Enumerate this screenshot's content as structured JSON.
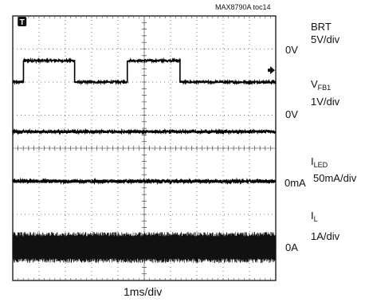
{
  "figure_id": "MAX8790A toc14",
  "time_base": "1ms/div",
  "chart_data": {
    "type": "line",
    "divisions": {
      "horizontal": 10,
      "vertical": 8
    },
    "x_axis": {
      "label": "1ms/div",
      "units": "ms",
      "range": [
        0,
        10
      ]
    },
    "trigger_marker": "T",
    "channels": [
      {
        "id": "brt",
        "name": "BRT",
        "scale": "5V/div",
        "ground_label": "0V",
        "ground_div": 6.0,
        "waveform": "pwm",
        "low_value_div": 0.0,
        "high_value_div": 0.65,
        "edges_ms": [
          0.4,
          2.35,
          4.35,
          6.35
        ],
        "noise_div": 0.03
      },
      {
        "id": "vfb1",
        "name": "V",
        "name_sub": "FB1",
        "scale": "1V/div",
        "ground_label": "0V",
        "ground_div": 4.5,
        "waveform": "dc",
        "value_div": 0.0,
        "noise_div": 0.04
      },
      {
        "id": "iled",
        "name": "I",
        "name_sub": "LED",
        "scale": "50mA/div",
        "ground_label": "0mA",
        "ground_div": 3.0,
        "waveform": "dc",
        "value_div": 0.0,
        "noise_div": 0.05
      },
      {
        "id": "il",
        "name": "I",
        "name_sub": "L",
        "scale": "1A/div",
        "ground_label": "0A",
        "ground_div": 1.0,
        "waveform": "ripple",
        "value_div": 0.0,
        "ripple_div": 0.45
      }
    ]
  }
}
